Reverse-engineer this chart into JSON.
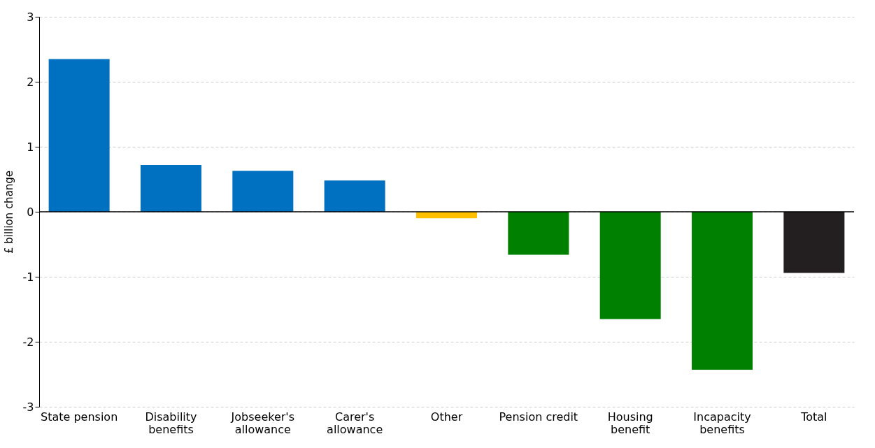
{
  "chart_data": {
    "type": "bar",
    "ylabel": "£ billion change",
    "categories": [
      "State pension",
      "Disability benefits",
      "Jobseeker's allowance",
      "Carer's allowance",
      "Other",
      "Pension credit",
      "Housing benefit",
      "Incapacity benefits",
      "Total"
    ],
    "values": [
      2.35,
      0.72,
      0.63,
      0.48,
      -0.1,
      -0.66,
      -1.65,
      -2.43,
      -0.94
    ],
    "colors": [
      "#0070c0",
      "#0070c0",
      "#0070c0",
      "#0070c0",
      "#ffc000",
      "#008000",
      "#008000",
      "#008000",
      "#231f20"
    ],
    "ylim": [
      -3,
      3
    ],
    "yticks": [
      -3,
      -2,
      -1,
      0,
      1,
      2,
      3
    ],
    "grid": "y"
  }
}
